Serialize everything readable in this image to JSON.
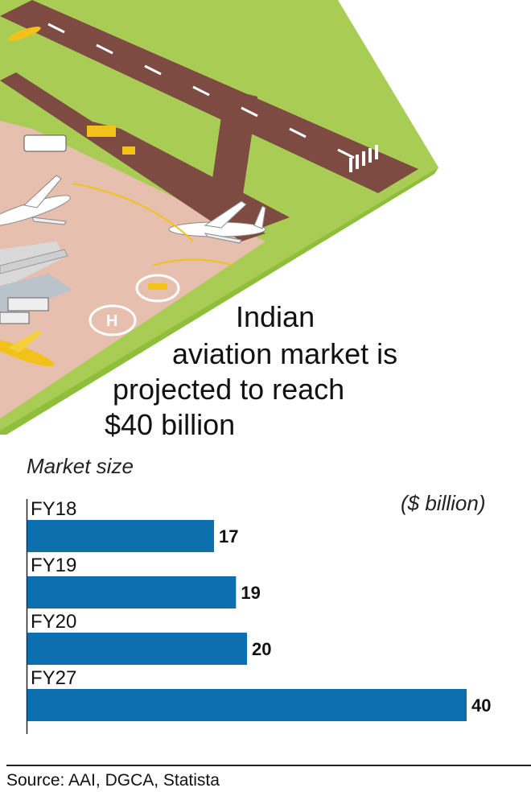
{
  "headline": {
    "line1": "Indian",
    "line2": "aviation market is",
    "line3": "projected to reach",
    "line4": "$40 billion"
  },
  "source": "Source: AAI, DGCA, Statista",
  "colors": {
    "bar": "#0d6fae",
    "grass": "#a9cc55",
    "grass_edge": "#8fbf3a",
    "tarmac": "#7e4b42",
    "apron": "#e7bfae"
  },
  "chart_data": {
    "type": "bar",
    "orientation": "horizontal",
    "title": "Market size",
    "unit_label": "($ billion)",
    "categories": [
      "FY18",
      "FY19",
      "FY20",
      "FY27"
    ],
    "values": [
      17,
      19,
      20,
      40
    ],
    "xlim": [
      0,
      40
    ],
    "grid": false,
    "legend": "none"
  }
}
